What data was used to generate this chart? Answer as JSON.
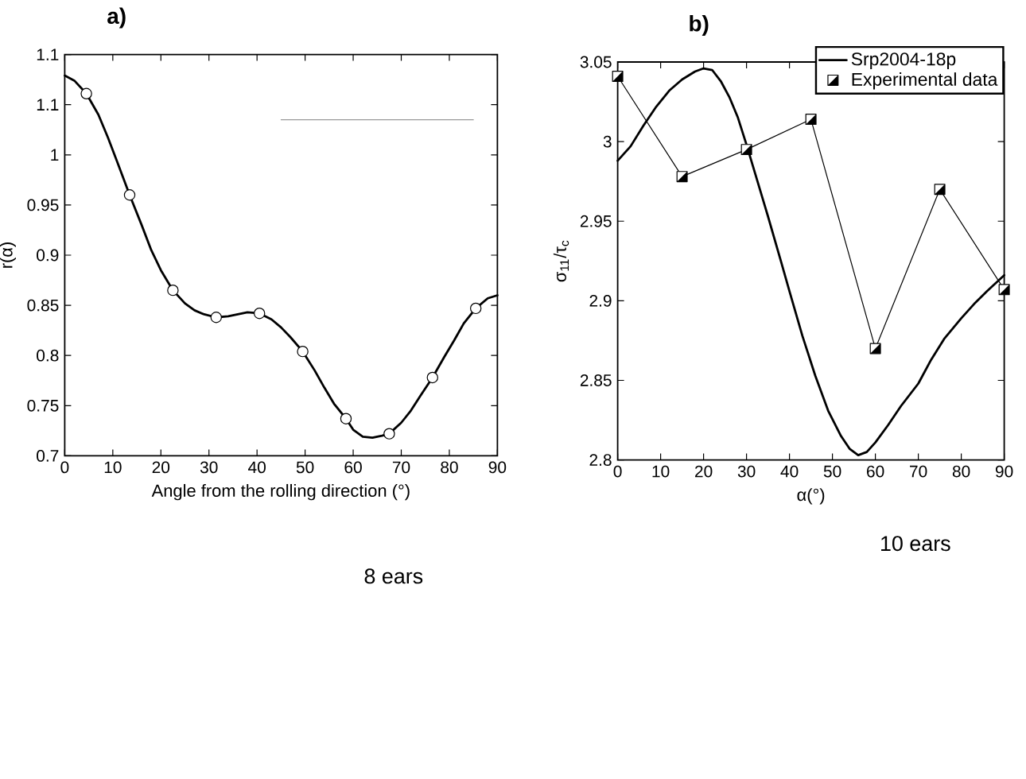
{
  "chart_data": [
    {
      "type": "line",
      "title": "a)",
      "xlabel": "Angle from the rolling direction (°)",
      "ylabel": "r(α)",
      "xlim": [
        0,
        90
      ],
      "xticks": [
        0,
        10,
        20,
        30,
        40,
        50,
        60,
        70,
        80,
        90
      ],
      "ylim": [
        0.7,
        1.1
      ],
      "yticks": [
        0.7,
        0.75,
        0.8,
        0.85,
        0.9,
        0.95,
        1,
        {
          "value": 1.05,
          "label": "1.1"
        },
        1.1
      ],
      "series": [
        {
          "color": "#000000",
          "x": [
            0,
            2,
            4.5,
            7,
            9,
            11,
            13.5,
            16,
            18,
            20,
            22.5,
            25,
            27,
            29,
            31.5,
            34,
            36,
            38,
            40.5,
            43,
            45,
            47,
            49.5,
            52,
            54,
            56,
            58.5,
            60,
            62,
            64,
            66,
            67.5,
            70,
            72,
            74,
            76.5,
            79,
            81,
            83,
            85.5,
            88,
            90
          ],
          "values": [
            1.079,
            1.074,
            1.061,
            1.04,
            1.017,
            0.992,
            0.96,
            0.93,
            0.905,
            0.885,
            0.865,
            0.852,
            0.845,
            0.841,
            0.838,
            0.839,
            0.841,
            0.843,
            0.842,
            0.836,
            0.828,
            0.818,
            0.804,
            0.785,
            0.768,
            0.752,
            0.737,
            0.726,
            0.719,
            0.718,
            0.72,
            0.722,
            0.733,
            0.745,
            0.76,
            0.778,
            0.799,
            0.815,
            0.832,
            0.847,
            0.857,
            0.86
          ]
        },
        {
          "type": "scatter",
          "color": "#000000",
          "marker": "circle",
          "x": [
            4.5,
            13.5,
            22.5,
            31.5,
            40.5,
            49.5,
            58.5,
            67.5,
            76.5,
            85.5
          ],
          "values": [
            1.061,
            0.96,
            0.865,
            0.838,
            0.842,
            0.804,
            0.737,
            0.722,
            0.778,
            0.847
          ]
        },
        {
          "color": "#999999",
          "x": [
            45,
            85
          ],
          "values": [
            1.035,
            1.035
          ]
        }
      ],
      "annotations": [
        "8 ears"
      ]
    },
    {
      "type": "line",
      "title": "b)",
      "xlabel": "α(°)",
      "ylabel": "σ$_{11}$/τ$_{c}$",
      "xlim": [
        0,
        90
      ],
      "xticks": [
        0,
        10,
        20,
        30,
        40,
        50,
        60,
        70,
        80,
        90
      ],
      "ylim": [
        2.8,
        3.05
      ],
      "yticks": [
        2.8,
        2.85,
        2.9,
        2.95,
        3,
        3.05
      ],
      "legend": "top right",
      "series": [
        {
          "name": "Srp2004-18p",
          "color": "#000000",
          "x": [
            0,
            3,
            6,
            9,
            12,
            15,
            18,
            20,
            22,
            24,
            26,
            28,
            30,
            32,
            35,
            38,
            40,
            43,
            46,
            49,
            52,
            54,
            56,
            58,
            60,
            63,
            66,
            70,
            73,
            76,
            80,
            83,
            86,
            88,
            90
          ],
          "values": [
            2.988,
            2.997,
            3.01,
            3.022,
            3.032,
            3.039,
            3.044,
            3.046,
            3.045,
            3.038,
            3.028,
            3.015,
            2.998,
            2.98,
            2.953,
            2.925,
            2.906,
            2.878,
            2.853,
            2.831,
            2.815,
            2.807,
            2.803,
            2.805,
            2.811,
            2.822,
            2.834,
            2.848,
            2.863,
            2.876,
            2.889,
            2.898,
            2.906,
            2.911,
            2.916
          ]
        },
        {
          "name": "Experimental data",
          "marker": "square",
          "color": "#000000",
          "x": [
            0,
            15,
            30,
            45,
            60,
            75,
            90
          ],
          "values": [
            3.041,
            2.978,
            2.995,
            3.014,
            2.87,
            2.97,
            2.907
          ]
        }
      ],
      "annotations": [
        "10 ears"
      ]
    }
  ]
}
